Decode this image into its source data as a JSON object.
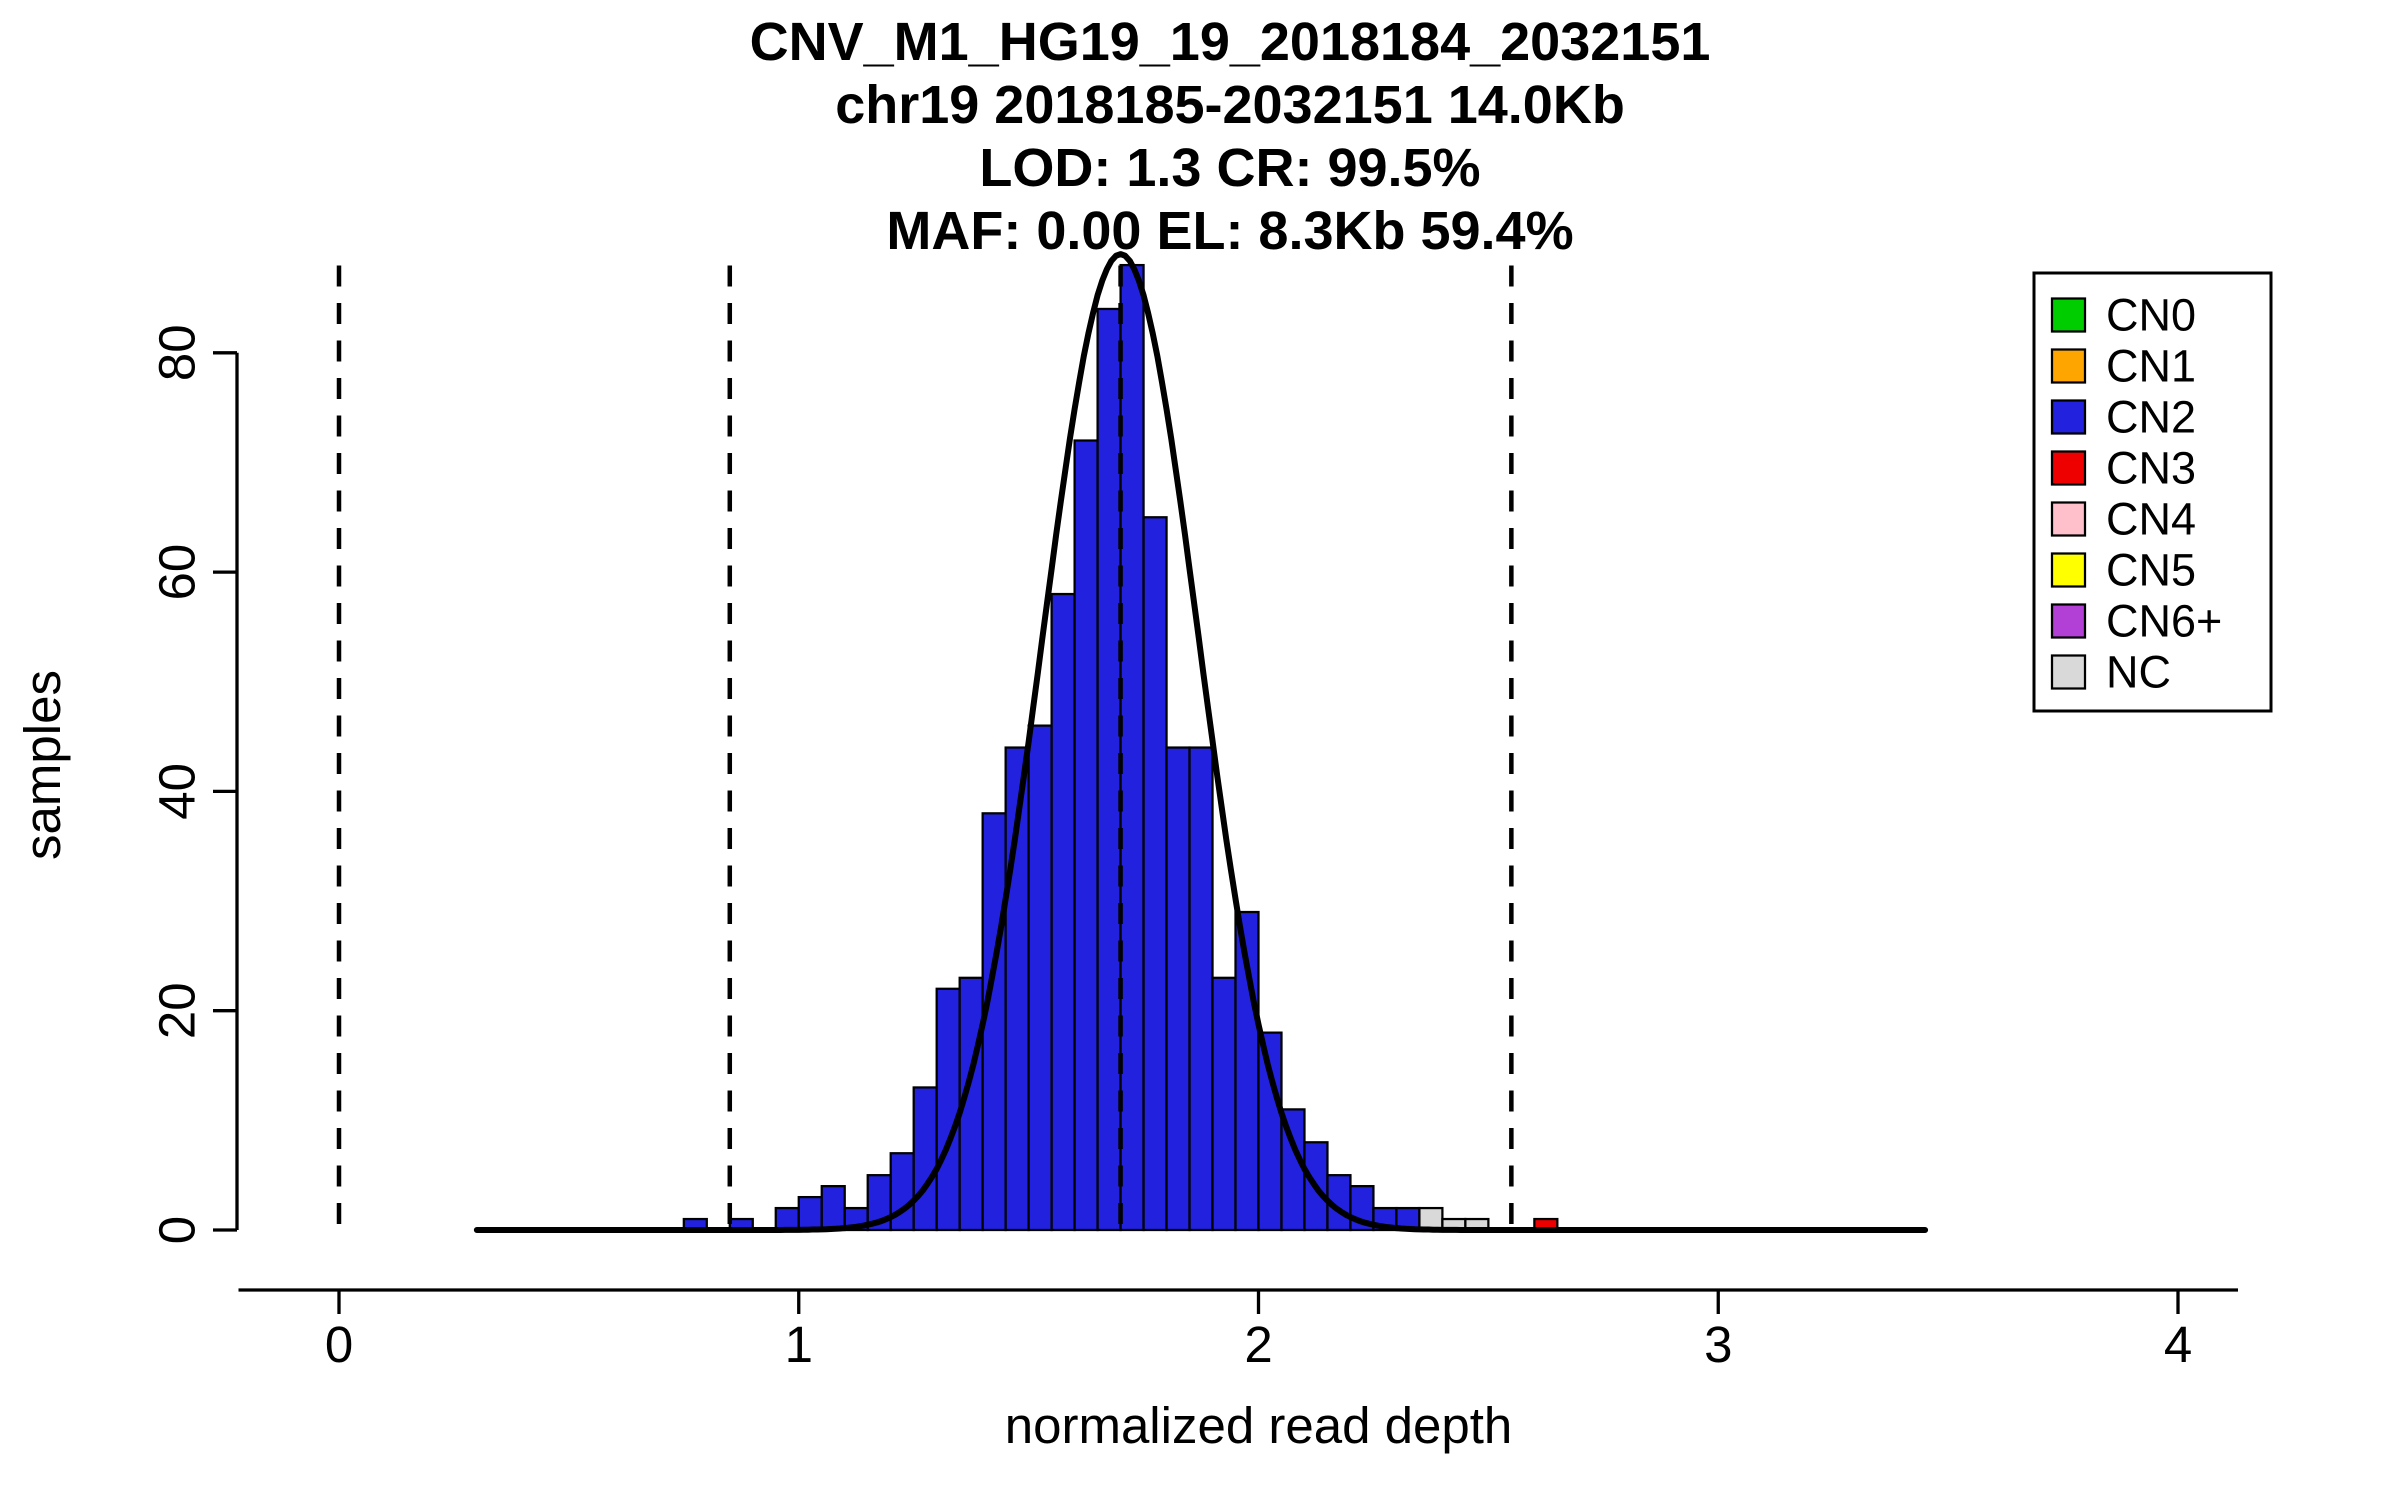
{
  "title": {
    "line1": "CNV_M1_HG19_19_2018184_2032151",
    "line2": "chr19 2018185-2032151 14.0Kb",
    "line3": "LOD: 1.3 CR: 99.5%",
    "line4": "MAF: 0.00 EL: 8.3Kb 59.4%"
  },
  "chart_data": {
    "type": "bar",
    "subtype": "histogram",
    "title": "CNV_M1_HG19_19_2018184_2032151 / chr19 2018185-2032151 14.0Kb / LOD: 1.3 CR: 99.5% / MAF: 0.00 EL: 8.3Kb 59.4%",
    "xlabel": "normalized read depth",
    "ylabel": "samples",
    "x_ticks": [
      0,
      1,
      2,
      3,
      4
    ],
    "y_ticks": [
      0,
      20,
      40,
      60,
      80
    ],
    "xlim": [
      -0.22,
      4.13
    ],
    "ylim": [
      0,
      89
    ],
    "grid": false,
    "legend_position": "top-right",
    "bin_width": 0.05,
    "bars": [
      {
        "x": 0.75,
        "count": 1,
        "cn": "CN2"
      },
      {
        "x": 0.85,
        "count": 1,
        "cn": "CN2"
      },
      {
        "x": 0.95,
        "count": 2,
        "cn": "CN2"
      },
      {
        "x": 1.0,
        "count": 3,
        "cn": "CN2"
      },
      {
        "x": 1.05,
        "count": 4,
        "cn": "CN2"
      },
      {
        "x": 1.1,
        "count": 2,
        "cn": "CN2"
      },
      {
        "x": 1.15,
        "count": 5,
        "cn": "CN2"
      },
      {
        "x": 1.2,
        "count": 7,
        "cn": "CN2"
      },
      {
        "x": 1.25,
        "count": 13,
        "cn": "CN2"
      },
      {
        "x": 1.3,
        "count": 22,
        "cn": "CN2"
      },
      {
        "x": 1.35,
        "count": 23,
        "cn": "CN2"
      },
      {
        "x": 1.4,
        "count": 38,
        "cn": "CN2"
      },
      {
        "x": 1.45,
        "count": 44,
        "cn": "CN2"
      },
      {
        "x": 1.5,
        "count": 46,
        "cn": "CN2"
      },
      {
        "x": 1.55,
        "count": 58,
        "cn": "CN2"
      },
      {
        "x": 1.6,
        "count": 72,
        "cn": "CN2"
      },
      {
        "x": 1.65,
        "count": 84,
        "cn": "CN2"
      },
      {
        "x": 1.7,
        "count": 88,
        "cn": "CN2"
      },
      {
        "x": 1.75,
        "count": 65,
        "cn": "CN2"
      },
      {
        "x": 1.8,
        "count": 44,
        "cn": "CN2"
      },
      {
        "x": 1.85,
        "count": 44,
        "cn": "CN2"
      },
      {
        "x": 1.9,
        "count": 23,
        "cn": "CN2"
      },
      {
        "x": 1.95,
        "count": 29,
        "cn": "CN2"
      },
      {
        "x": 2.0,
        "count": 18,
        "cn": "CN2"
      },
      {
        "x": 2.05,
        "count": 11,
        "cn": "CN2"
      },
      {
        "x": 2.1,
        "count": 8,
        "cn": "CN2"
      },
      {
        "x": 2.15,
        "count": 5,
        "cn": "CN2"
      },
      {
        "x": 2.2,
        "count": 4,
        "cn": "CN2"
      },
      {
        "x": 2.25,
        "count": 2,
        "cn": "CN2"
      },
      {
        "x": 2.3,
        "count": 2,
        "cn": "CN2"
      },
      {
        "x": 2.35,
        "count": 2,
        "cn": "NC"
      },
      {
        "x": 2.4,
        "count": 1,
        "cn": "NC"
      },
      {
        "x": 2.45,
        "count": 1,
        "cn": "NC"
      },
      {
        "x": 2.6,
        "count": 1,
        "cn": "CN3"
      }
    ],
    "gaussian_fit": {
      "mean": 1.7,
      "sd": 0.17,
      "peak": 89,
      "x_range": [
        0.3,
        3.45
      ]
    },
    "dashed_threshold_lines_x": [
      0,
      0.85,
      1.7,
      2.55
    ],
    "legend": [
      {
        "label": "CN0",
        "color": "#00CD00"
      },
      {
        "label": "CN1",
        "color": "#FFA500"
      },
      {
        "label": "CN2",
        "color": "#2121DE"
      },
      {
        "label": "CN3",
        "color": "#EE0000"
      },
      {
        "label": "CN4",
        "color": "#FFC0CB"
      },
      {
        "label": "CN5",
        "color": "#FFFF00"
      },
      {
        "label": "CN6+",
        "color": "#B23FD6"
      },
      {
        "label": "NC",
        "color": "#D9D9D9"
      }
    ],
    "colors": {
      "CN0": "#00CD00",
      "CN1": "#FFA500",
      "CN2": "#2121DE",
      "CN3": "#EE0000",
      "CN4": "#FFC0CB",
      "CN5": "#FFFF00",
      "CN6+": "#B23FD6",
      "NC": "#D9D9D9"
    }
  }
}
